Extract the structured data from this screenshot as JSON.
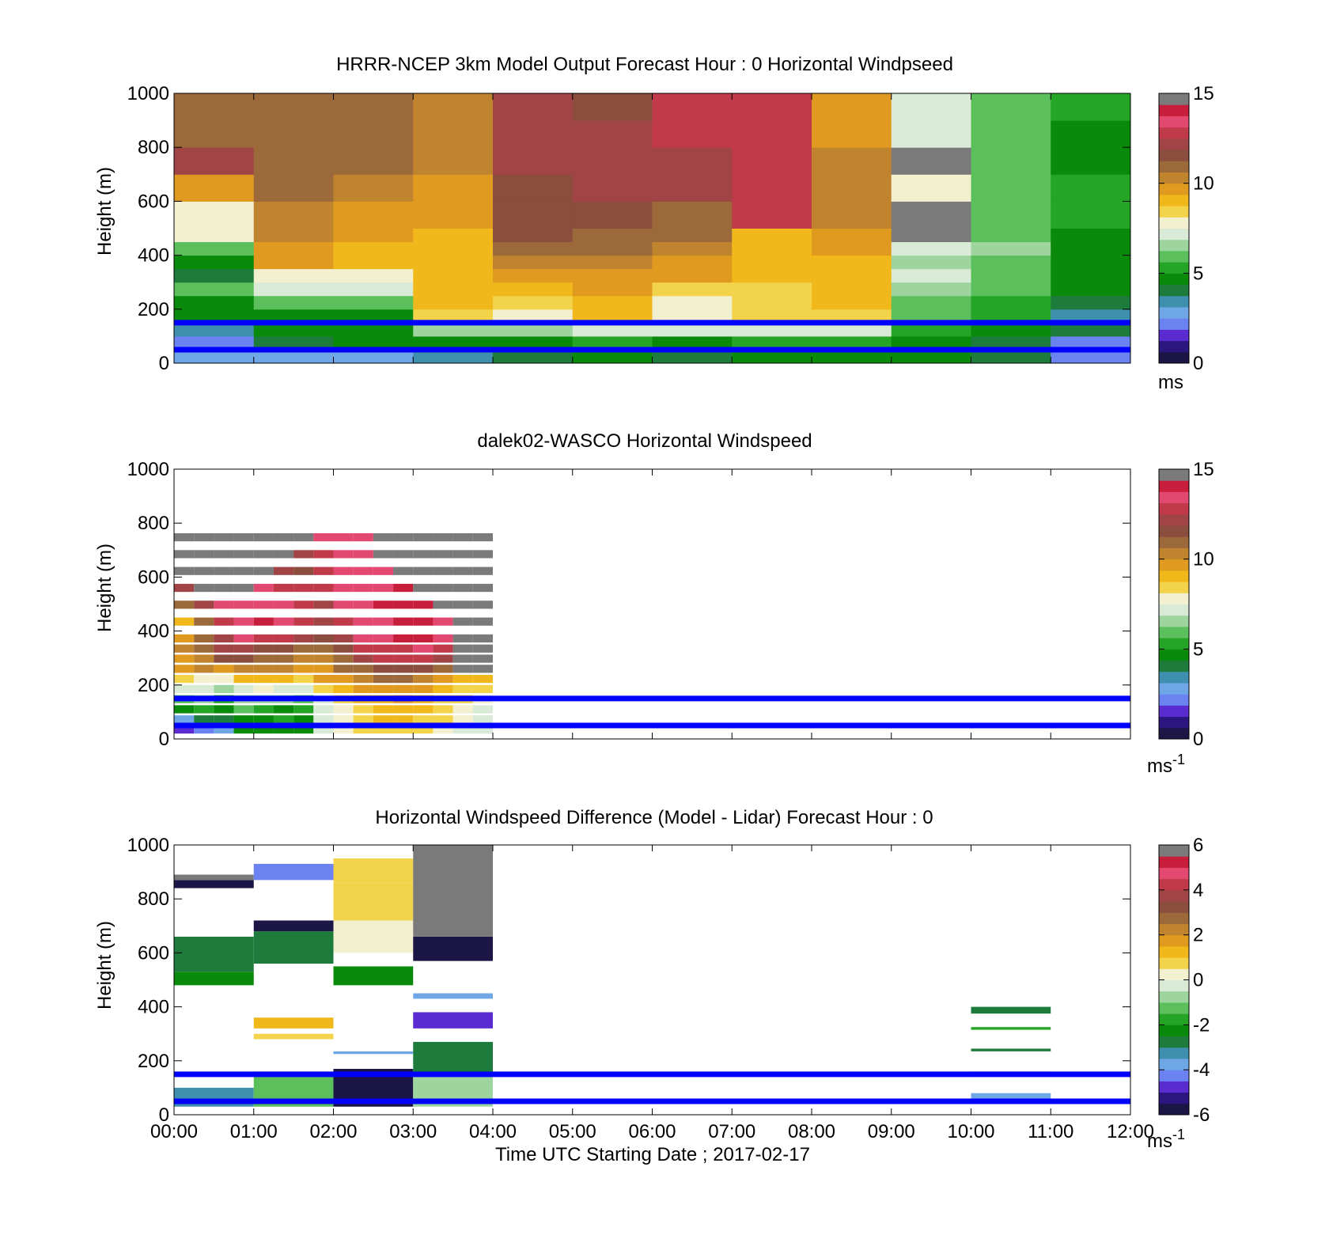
{
  "colormaps": {
    "speed": [
      "#1b1646",
      "#2b1680",
      "#5a2bd0",
      "#6a83f0",
      "#6ea6e6",
      "#3f8fae",
      "#1d7c3c",
      "#0a8a0a",
      "#25a525",
      "#5bbf5b",
      "#9ed49e",
      "#d9ead6",
      "#f3f0d0",
      "#f2d34a",
      "#f1b81b",
      "#e09a20",
      "#c0842f",
      "#9c6a3a",
      "#8a4d3e",
      "#a04446",
      "#c03a4a",
      "#e34870",
      "#c71e3b",
      "#7a7a7a"
    ],
    "diff": [
      "#1b1646",
      "#2b1680",
      "#5a2bd0",
      "#6a83f0",
      "#6ea6e6",
      "#3f8fae",
      "#1d7c3c",
      "#0a8a0a",
      "#25a525",
      "#5bbf5b",
      "#9ed49e",
      "#d9ead6",
      "#f3f0d0",
      "#f2d34a",
      "#f1b81b",
      "#e09a20",
      "#c0842f",
      "#9c6a3a",
      "#8a4d3e",
      "#a04446",
      "#c03a4a",
      "#e34870",
      "#c71e3b",
      "#7a7a7a"
    ]
  },
  "reference_lines": {
    "heights_m": [
      150,
      50
    ],
    "color": "#0000ff"
  },
  "chart_data": [
    {
      "type": "heatmap",
      "title": "HRRR-NCEP 3km Model Output   Forecast Hour : 0 Horizontal Windpseed",
      "ylabel": "Height (m)",
      "ylim": [
        0,
        1000
      ],
      "yticks": [
        "0",
        "200",
        "400",
        "600",
        "800",
        "1000"
      ],
      "xlim_hours": [
        0,
        12
      ],
      "colorbar": {
        "min": 0,
        "max": 15,
        "ticks": [
          "0",
          "5",
          "10",
          "15"
        ],
        "unit": "ms",
        "unit_sup": "",
        "cmap": "speed"
      },
      "column_edges_hours": [
        0,
        1,
        2,
        3,
        4,
        5,
        6,
        7,
        8,
        9,
        10,
        11,
        12
      ],
      "row_edges_m": [
        0,
        50,
        100,
        150,
        200,
        250,
        300,
        350,
        400,
        450,
        500,
        600,
        700,
        800,
        900,
        1000
      ],
      "values": [
        [
          2.8,
          2.2,
          3.3,
          4.6,
          5.2,
          6.1,
          4.3,
          4.6,
          6.1,
          7.9,
          8.2,
          10.4,
          12.5,
          11.2,
          11.1
        ],
        [
          2.8,
          4.4,
          5.0,
          5.2,
          5.9,
          7.3,
          8.1,
          10.0,
          10.2,
          10.5,
          10.6,
          11.3,
          11.3,
          11.4,
          11.6
        ],
        [
          3.1,
          4.6,
          5.0,
          5.2,
          6.0,
          7.4,
          8.0,
          9.3,
          9.6,
          10.2,
          10.4,
          11.0,
          11.2,
          11.4,
          11.5
        ],
        [
          3.6,
          5.2,
          6.9,
          9.1,
          9.2,
          9.3,
          9.3,
          9.4,
          9.6,
          9.7,
          9.8,
          10.2,
          10.5,
          10.8,
          11.0
        ],
        [
          4.4,
          5.0,
          7.1,
          8.3,
          8.8,
          9.6,
          10.2,
          10.8,
          11.4,
          11.8,
          12.0,
          12.1,
          12.4,
          12.7,
          12.9
        ],
        [
          4.8,
          5.3,
          7.2,
          9.5,
          9.6,
          9.8,
          10.4,
          10.8,
          11.3,
          11.6,
          12.2,
          12.9,
          12.6,
          12.4,
          12.3
        ],
        [
          4.5,
          4.8,
          7.3,
          8.4,
          8.3,
          9.1,
          10.1,
          10.4,
          10.9,
          11.3,
          11.6,
          12.5,
          12.9,
          13.3,
          13.2
        ],
        [
          4.7,
          5.4,
          7.5,
          9.1,
          9.0,
          9.1,
          9.2,
          9.3,
          9.4,
          9.6,
          13.4,
          13.6,
          13.5,
          13.5,
          13.4
        ],
        [
          4.8,
          5.7,
          7.3,
          9.0,
          9.3,
          9.4,
          9.7,
          9.5,
          9.8,
          10.3,
          10.6,
          10.9,
          10.5,
          10.3,
          10.2
        ],
        [
          4.9,
          5.1,
          5.6,
          6.0,
          6.3,
          6.8,
          7.3,
          7.0,
          7.7,
          22.9,
          22.8,
          8.1,
          22.7,
          7.3,
          7.2
        ],
        [
          4.1,
          4.0,
          5.1,
          5.4,
          5.7,
          5.9,
          6.2,
          6.3,
          6.6,
          6.4,
          6.4,
          6.0,
          5.9,
          6.0,
          6.1
        ],
        [
          2.6,
          2.4,
          4.2,
          3.4,
          4.4,
          4.8,
          4.9,
          5.0,
          5.1,
          5.1,
          5.3,
          5.3,
          5.2,
          5.2,
          5.5
        ]
      ]
    },
    {
      "type": "heatmap",
      "title": "dalek02-WASCO  Horizontal Windspeed",
      "ylabel": "Height (m)",
      "ylim": [
        0,
        1000
      ],
      "yticks": [
        "0",
        "200",
        "400",
        "600",
        "800",
        "1000"
      ],
      "xlim_hours": [
        0,
        12
      ],
      "colorbar": {
        "min": 0,
        "max": 15,
        "ticks": [
          "0",
          "5",
          "10",
          "15"
        ],
        "unit": "ms",
        "unit_sup": "-1",
        "cmap": "speed"
      },
      "time_step_hours": 0.25,
      "height_step_m": 16,
      "profiles": [
        {
          "t": 0.0,
          "v": [
            1.5,
            3.1,
            5.1,
            6.3,
            7.6,
            9.0,
            9.9,
            10.1,
            10.5,
            10.0,
            9.3,
            11.7,
            12.6,
            16,
            16,
            16
          ]
        },
        {
          "t": 0.25,
          "v": [
            2.0,
            4.0,
            5.8,
            6.6,
            7.3,
            8.4,
            10.6,
            10.9,
            11.4,
            11.5,
            11.2,
            12.4,
            16,
            16,
            16,
            16
          ]
        },
        {
          "t": 0.5,
          "v": [
            3.2,
            4.4,
            5.1,
            5.5,
            6.6,
            8.2,
            10.2,
            11.8,
            12.5,
            12.9,
            13.6,
            13.8,
            16,
            16,
            16,
            16
          ]
        },
        {
          "t": 0.75,
          "v": [
            5.0,
            5.0,
            5.9,
            6.7,
            7.4,
            9.4,
            10.6,
            11.8,
            12.8,
            13.8,
            14.0,
            14.2,
            16,
            16,
            16,
            16
          ]
        },
        {
          "t": 1.0,
          "v": [
            5.1,
            5.0,
            5.7,
            6.9,
            8.0,
            9.2,
            10.7,
            11.6,
            12.2,
            13.6,
            14.4,
            14.3,
            13.9,
            16,
            16,
            16
          ]
        },
        {
          "t": 1.25,
          "v": [
            5.1,
            5.3,
            5.2,
            7.0,
            7.7,
            9.3,
            10.6,
            11.4,
            12.0,
            13.2,
            14.0,
            14.1,
            13.6,
            13.0,
            16,
            16
          ]
        },
        {
          "t": 1.5,
          "v": [
            5.2,
            5.0,
            5.8,
            6.2,
            7.7,
            8.9,
            10.2,
            10.8,
            11.6,
            12.4,
            13.1,
            13.6,
            13.5,
            12.3,
            12.8,
            16
          ]
        },
        {
          "t": 1.75,
          "v": [
            7.5,
            7.4,
            7.6,
            7.8,
            9.0,
            10.0,
            10.3,
            10.8,
            11.5,
            12.0,
            12.6,
            13.0,
            13.3,
            13.6,
            13.4,
            14.0
          ]
        },
        {
          "t": 2.0,
          "v": [
            8.2,
            8.4,
            8.3,
            8.5,
            9.3,
            10.4,
            11.3,
            11.6,
            12.1,
            12.9,
            13.4,
            13.9,
            14.1,
            14.2,
            13.9,
            14.0
          ]
        },
        {
          "t": 2.25,
          "v": [
            8.6,
            9.0,
            8.8,
            9.4,
            9.8,
            10.6,
            11.6,
            12.5,
            13.2,
            13.7,
            13.9,
            14.0,
            14.2,
            13.7,
            13.8,
            14.0
          ]
        },
        {
          "t": 2.5,
          "v": [
            9.1,
            9.2,
            9.5,
            9.6,
            10.1,
            11.2,
            12.1,
            13.1,
            13.6,
            14.0,
            14.2,
            14.5,
            14.3,
            14.0,
            16,
            16
          ]
        },
        {
          "t": 2.75,
          "v": [
            8.9,
            9.3,
            9.6,
            9.8,
            10.3,
            11.3,
            12.3,
            13.1,
            13.6,
            14.4,
            14.5,
            14.7,
            14.4,
            16,
            16,
            16
          ]
        },
        {
          "t": 3.0,
          "v": [
            8.7,
            9.1,
            9.2,
            9.3,
            10.0,
            10.9,
            12.2,
            13.1,
            13.7,
            14.4,
            14.6,
            14.4,
            16,
            16,
            16,
            16
          ]
        },
        {
          "t": 3.25,
          "v": [
            8.1,
            8.5,
            8.6,
            8.9,
            9.4,
            10.2,
            11.6,
            12.4,
            13.1,
            13.8,
            14.0,
            16,
            16,
            16,
            16,
            16
          ]
        },
        {
          "t": 3.5,
          "v": [
            7.8,
            8.0,
            8.3,
            8.6,
            9.1,
            9.7,
            16,
            16,
            16,
            16,
            16,
            16,
            16,
            16,
            16,
            16
          ]
        },
        {
          "t": 3.75,
          "v": [
            7.2,
            7.5,
            7.8,
            8.1,
            8.6,
            9.3,
            16,
            16,
            16,
            16,
            16,
            16,
            16,
            16,
            16,
            16
          ]
        }
      ]
    },
    {
      "type": "heatmap",
      "title": "Horizontal Windspeed Difference (Model - Lidar) Forecast Hour : 0",
      "ylabel": "Height (m)",
      "ylim": [
        0,
        1000
      ],
      "yticks": [
        "0",
        "200",
        "400",
        "600",
        "800",
        "1000"
      ],
      "xlim_hours": [
        0,
        12
      ],
      "xticks": [
        "00:00",
        "01:00",
        "02:00",
        "03:00",
        "04:00",
        "05:00",
        "06:00",
        "07:00",
        "08:00",
        "09:00",
        "10:00",
        "11:00",
        "12:00"
      ],
      "xlabel": "Time UTC  Starting Date ; 2017-02-17",
      "colorbar": {
        "min": -6,
        "max": 6,
        "ticks": [
          "-6",
          "-4",
          "-2",
          "0",
          "2",
          "4",
          "6"
        ],
        "unit": "ms",
        "unit_sup": "-1",
        "cmap": "diff"
      },
      "bands": [
        {
          "t0": 0,
          "t1": 1,
          "h0": 30,
          "h1": 100,
          "v": -3.0
        },
        {
          "t0": 0,
          "t1": 1,
          "h0": 480,
          "h1": 530,
          "v": -2.0
        },
        {
          "t0": 0,
          "t1": 1,
          "h0": 530,
          "h1": 660,
          "v": -2.4
        },
        {
          "t0": 0,
          "t1": 1,
          "h0": 840,
          "h1": 870,
          "v": -5.8
        },
        {
          "t0": 0,
          "t1": 1,
          "h0": 870,
          "h1": 890,
          "v": 6.5
        },
        {
          "t0": 1,
          "t1": 2,
          "h0": 30,
          "h1": 160,
          "v": -1.2
        },
        {
          "t0": 1,
          "t1": 2,
          "h0": 280,
          "h1": 300,
          "v": 1.0
        },
        {
          "t0": 1,
          "t1": 2,
          "h0": 320,
          "h1": 360,
          "v": 1.6
        },
        {
          "t0": 1,
          "t1": 2,
          "h0": 560,
          "h1": 680,
          "v": -2.6
        },
        {
          "t0": 1,
          "t1": 2,
          "h0": 680,
          "h1": 720,
          "v": -5.7
        },
        {
          "t0": 1,
          "t1": 2,
          "h0": 870,
          "h1": 930,
          "v": -4.2
        },
        {
          "t0": 2,
          "t1": 3,
          "h0": 30,
          "h1": 170,
          "v": -5.6
        },
        {
          "t0": 2,
          "t1": 3,
          "h0": 225,
          "h1": 235,
          "v": -3.8
        },
        {
          "t0": 2,
          "t1": 3,
          "h0": 480,
          "h1": 550,
          "v": -2.3
        },
        {
          "t0": 2,
          "t1": 3,
          "h0": 600,
          "h1": 720,
          "v": 0.4
        },
        {
          "t0": 2,
          "t1": 3,
          "h0": 720,
          "h1": 860,
          "v": 0.8
        },
        {
          "t0": 2,
          "t1": 3,
          "h0": 860,
          "h1": 950,
          "v": 1.2
        },
        {
          "t0": 3,
          "t1": 4,
          "h0": 30,
          "h1": 150,
          "v": -0.6
        },
        {
          "t0": 3,
          "t1": 4,
          "h0": 150,
          "h1": 270,
          "v": -2.5
        },
        {
          "t0": 3,
          "t1": 4,
          "h0": 320,
          "h1": 380,
          "v": -4.8
        },
        {
          "t0": 3,
          "t1": 4,
          "h0": 430,
          "h1": 450,
          "v": -3.6
        },
        {
          "t0": 3,
          "t1": 4,
          "h0": 570,
          "h1": 660,
          "v": -5.5
        },
        {
          "t0": 3,
          "t1": 4,
          "h0": 660,
          "h1": 1000,
          "v": 7
        },
        {
          "t0": 10,
          "t1": 11,
          "h0": 60,
          "h1": 80,
          "v": -3.9
        },
        {
          "t0": 10,
          "t1": 11,
          "h0": 155,
          "h1": 160,
          "v": -4.2
        },
        {
          "t0": 10,
          "t1": 11,
          "h0": 235,
          "h1": 245,
          "v": -2.7
        },
        {
          "t0": 10,
          "t1": 11,
          "h0": 315,
          "h1": 325,
          "v": -1.4
        },
        {
          "t0": 10,
          "t1": 11,
          "h0": 375,
          "h1": 400,
          "v": -2.4
        }
      ]
    }
  ]
}
